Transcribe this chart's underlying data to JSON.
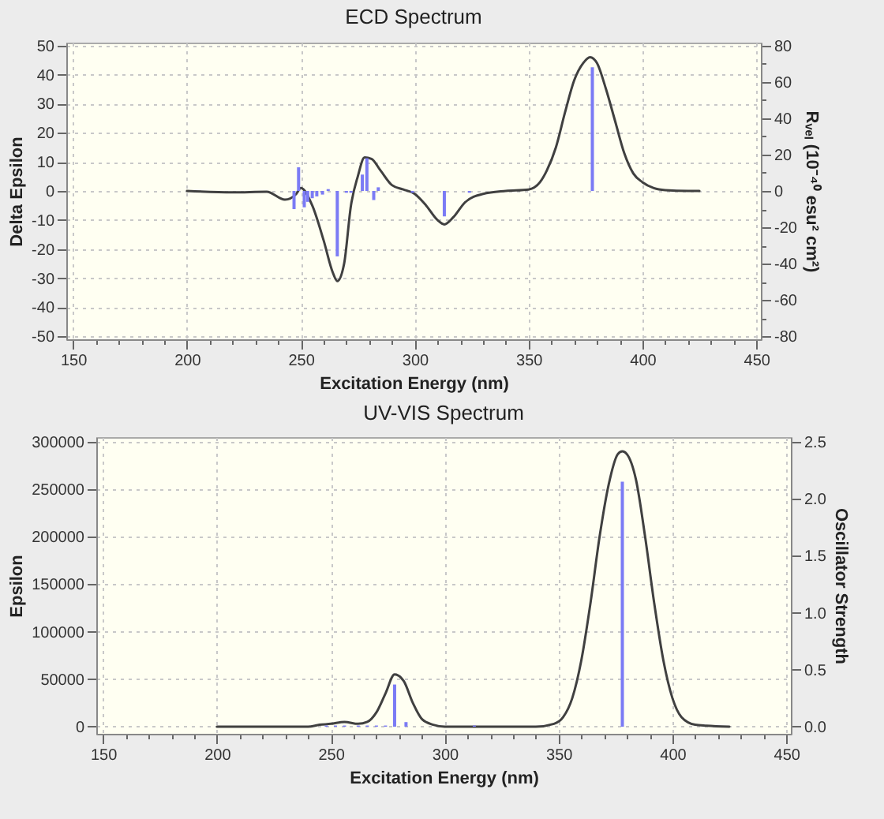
{
  "chart_data": [
    {
      "type": "line",
      "title": "ECD Spectrum",
      "xlabel": "Excitation Energy (nm)",
      "ylabel": "Delta Epsilon",
      "y2label": "Rᵥₑₗ (10⁻⁴⁰ esu² cm²)",
      "xlim": [
        147,
        452
      ],
      "xticks": [
        150,
        {
          "value": 160,
          "label": null
        },
        {
          "value": 170,
          "label": null
        },
        {
          "value": 180,
          "label": null
        },
        {
          "value": 190,
          "label": null
        },
        200,
        {
          "value": 210,
          "label": null
        },
        {
          "value": 220,
          "label": null
        },
        {
          "value": 230,
          "label": null
        },
        {
          "value": 240,
          "label": null
        },
        250,
        {
          "value": 260,
          "label": null
        },
        {
          "value": 270,
          "label": null
        },
        {
          "value": 280,
          "label": null
        },
        {
          "value": 290,
          "label": null
        },
        300,
        {
          "value": 310,
          "label": null
        },
        {
          "value": 320,
          "label": null
        },
        {
          "value": 330,
          "label": null
        },
        {
          "value": 340,
          "label": null
        },
        350,
        {
          "value": 360,
          "label": null
        },
        {
          "value": 370,
          "label": null
        },
        {
          "value": 380,
          "label": null
        },
        {
          "value": 390,
          "label": null
        },
        400,
        {
          "value": 410,
          "label": null
        },
        {
          "value": 420,
          "label": null
        },
        {
          "value": 430,
          "label": null
        },
        {
          "value": 440,
          "label": null
        },
        450
      ],
      "ylim": [
        -51,
        51
      ],
      "yticks": [
        -50,
        -40,
        -30,
        -20,
        -10,
        0,
        10,
        20,
        30,
        40,
        50
      ],
      "y2lim": [
        -81.6,
        81.6
      ],
      "y2ticks": [
        -80,
        {
          "value": -70,
          "label": null
        },
        -60,
        {
          "value": -50,
          "label": null
        },
        -40,
        {
          "value": -30,
          "label": null
        },
        -20,
        {
          "value": -10,
          "label": null
        },
        0,
        {
          "value": 10,
          "label": null
        },
        20,
        {
          "value": 30,
          "label": null
        },
        40,
        {
          "value": 50,
          "label": null
        },
        60,
        {
          "value": 70,
          "label": null
        },
        80
      ],
      "grid": true,
      "series": [
        {
          "type": "line",
          "color": "#404040",
          "x": [
            200,
            220,
            235,
            243,
            248,
            250,
            255,
            260,
            264,
            266,
            269,
            272,
            275,
            278,
            281,
            285,
            290,
            295,
            300,
            305,
            310,
            313,
            317,
            322,
            330,
            340,
            350,
            355,
            358,
            362,
            366,
            370,
            374,
            377,
            380,
            384,
            388,
            392,
            396,
            400,
            405,
            410,
            420,
            425
          ],
          "values": [
            0,
            -0.5,
            -0.3,
            -3,
            -1,
            1,
            -5,
            -17,
            -28,
            -31,
            -25,
            -5,
            5,
            11.5,
            11,
            7,
            2,
            0.5,
            -1,
            -5,
            -10,
            -11.5,
            -9,
            -4,
            -1,
            0,
            0.5,
            3,
            7,
            15,
            27,
            38,
            44,
            46,
            44,
            35,
            24,
            13,
            6,
            3,
            1,
            0.3,
            0,
            0
          ]
        },
        {
          "type": "bar",
          "axis": "y2",
          "color": "#7b7bf5",
          "x": [
            247,
            249,
            251.5,
            253,
            255,
            257,
            259.5,
            262,
            266,
            270,
            272,
            277,
            279,
            282,
            284,
            299,
            313,
            324,
            378
          ],
          "values": [
            -10,
            13,
            -9,
            -6,
            -4,
            -3,
            -2,
            1,
            -36,
            -1,
            -1,
            9,
            18,
            -5,
            2,
            -1,
            -14,
            -1,
            68
          ]
        }
      ]
    },
    {
      "type": "line",
      "title": "UV-VIS Spectrum",
      "xlabel": "Excitation Energy (nm)",
      "ylabel": "Epsilon",
      "y2label": "Oscillator Strength",
      "xlim": [
        147,
        452
      ],
      "xticks": [
        150,
        {
          "value": 160,
          "label": null
        },
        {
          "value": 170,
          "label": null
        },
        {
          "value": 180,
          "label": null
        },
        {
          "value": 190,
          "label": null
        },
        200,
        {
          "value": 210,
          "label": null
        },
        {
          "value": 220,
          "label": null
        },
        {
          "value": 230,
          "label": null
        },
        {
          "value": 240,
          "label": null
        },
        250,
        {
          "value": 260,
          "label": null
        },
        {
          "value": 270,
          "label": null
        },
        {
          "value": 280,
          "label": null
        },
        {
          "value": 290,
          "label": null
        },
        300,
        {
          "value": 310,
          "label": null
        },
        {
          "value": 320,
          "label": null
        },
        {
          "value": 330,
          "label": null
        },
        {
          "value": 340,
          "label": null
        },
        350,
        {
          "value": 360,
          "label": null
        },
        {
          "value": 370,
          "label": null
        },
        {
          "value": 380,
          "label": null
        },
        {
          "value": 390,
          "label": null
        },
        400,
        {
          "value": 410,
          "label": null
        },
        {
          "value": 420,
          "label": null
        },
        {
          "value": 430,
          "label": null
        },
        {
          "value": 440,
          "label": null
        },
        450
      ],
      "ylim": [
        -7500,
        305000
      ],
      "yticks": [
        0,
        50000,
        100000,
        150000,
        200000,
        250000,
        300000
      ],
      "y2lim": [
        -0.0625,
        2.5417
      ],
      "y2ticks": [
        {
          "value": 0,
          "label": "0.0"
        },
        0.5,
        {
          "value": 1,
          "label": "1.0"
        },
        1.5,
        {
          "value": 2,
          "label": "2.0"
        },
        2.5
      ],
      "grid": true,
      "series": [
        {
          "type": "line",
          "color": "#404040",
          "x": [
            200,
            240,
            245,
            250,
            256,
            262,
            266,
            270,
            274,
            278,
            282,
            286,
            290,
            295,
            300,
            340,
            348,
            352,
            356,
            360,
            364,
            368,
            372,
            376,
            378,
            380,
            384,
            388,
            392,
            396,
            400,
            404,
            410,
            415,
            425
          ],
          "values": [
            0,
            0,
            2000,
            3000,
            5000,
            3000,
            5000,
            15000,
            35000,
            55000,
            48000,
            25000,
            8000,
            2000,
            0,
            0,
            3000,
            10000,
            30000,
            70000,
            130000,
            200000,
            255000,
            287000,
            290000,
            287000,
            260000,
            200000,
            130000,
            70000,
            30000,
            10000,
            2000,
            1000,
            0
          ]
        },
        {
          "type": "bar",
          "axis": "y2",
          "color": "#7b7bf5",
          "x": [
            248,
            252,
            256,
            262,
            266,
            270,
            274,
            278,
            283,
            313,
            378
          ],
          "values": [
            0.01,
            0.01,
            0.01,
            0.01,
            0.01,
            0.01,
            0.01,
            0.37,
            0.04,
            0.01,
            2.15
          ]
        }
      ]
    }
  ]
}
